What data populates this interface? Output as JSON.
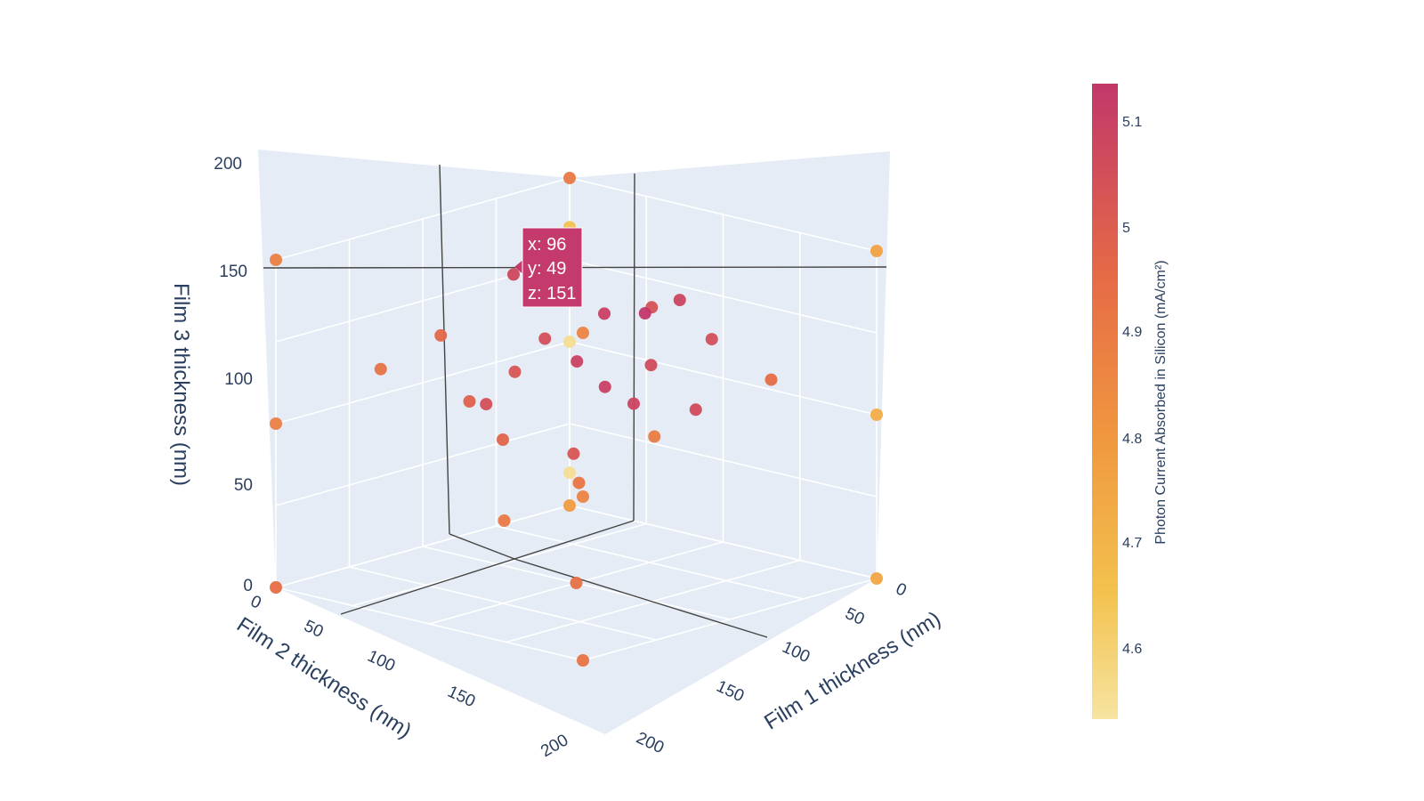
{
  "chart_data": {
    "type": "scatter3d",
    "xlabel": "Film 1 thickness (nm)",
    "ylabel": "Film 2 thickness (nm)",
    "zlabel": "Film 3 thickness (nm)",
    "xticks": [
      "0",
      "50",
      "100",
      "150",
      "200"
    ],
    "yticks": [
      "0",
      "50",
      "100",
      "150",
      "200"
    ],
    "zticks": [
      "0",
      "50",
      "100",
      "150",
      "200"
    ],
    "xlim": [
      0,
      200
    ],
    "ylim": [
      0,
      200
    ],
    "zlim": [
      0,
      200
    ],
    "colorbar": {
      "title": "Photon Current Absorbed in Silicon (mA/cm²)",
      "range": [
        4.53,
        5.13
      ],
      "ticks": [
        "4.6",
        "4.7",
        "4.8",
        "4.9",
        "5",
        "5.1"
      ],
      "colors": [
        "#f3e79b",
        "#fac484",
        "#f8a07e",
        "#eb7f86",
        "#ce6693",
        "#a059a0",
        "#5c53a5"
      ]
    },
    "points": [
      {
        "x": 0,
        "y": 0,
        "z": 0,
        "c": 4.78
      },
      {
        "x": 0,
        "y": 200,
        "z": 0,
        "c": 4.94
      },
      {
        "x": 200,
        "y": 0,
        "z": 0,
        "c": 4.75
      },
      {
        "x": 200,
        "y": 200,
        "z": 0,
        "c": 4.92
      },
      {
        "x": 0,
        "y": 0,
        "z": 200,
        "c": 4.9
      },
      {
        "x": 0,
        "y": 200,
        "z": 200,
        "c": 4.88
      },
      {
        "x": 200,
        "y": 0,
        "z": 200,
        "c": 4.76
      },
      {
        "x": 200,
        "y": 200,
        "z": 200,
        "c": 4.86
      },
      {
        "x": 0,
        "y": 0,
        "z": 100,
        "c": 4.55
      },
      {
        "x": 0,
        "y": 200,
        "z": 100,
        "c": 4.88
      },
      {
        "x": 200,
        "y": 0,
        "z": 100,
        "c": 4.72
      },
      {
        "x": 200,
        "y": 200,
        "z": 100,
        "c": 4.86
      },
      {
        "x": 0,
        "y": 0,
        "z": 20,
        "c": 4.55
      },
      {
        "x": 0,
        "y": 0,
        "z": 170,
        "c": 4.65
      },
      {
        "x": 100,
        "y": 100,
        "z": 0,
        "c": 4.93
      },
      {
        "x": 100,
        "y": 100,
        "z": 200,
        "c": 4.95
      },
      {
        "x": 96,
        "y": 49,
        "z": 151,
        "c": 5.13
      },
      {
        "x": 80,
        "y": 60,
        "z": 150,
        "c": 5.1
      },
      {
        "x": 110,
        "y": 40,
        "z": 160,
        "c": 5.08
      },
      {
        "x": 70,
        "y": 90,
        "z": 140,
        "c": 5.05
      },
      {
        "x": 60,
        "y": 100,
        "z": 120,
        "c": 5.02
      },
      {
        "x": 40,
        "y": 110,
        "z": 100,
        "c": 4.98
      },
      {
        "x": 120,
        "y": 70,
        "z": 130,
        "c": 5.06
      },
      {
        "x": 130,
        "y": 80,
        "z": 170,
        "c": 5.03
      },
      {
        "x": 90,
        "y": 120,
        "z": 180,
        "c": 5.0
      },
      {
        "x": 50,
        "y": 140,
        "z": 150,
        "c": 4.96
      },
      {
        "x": 150,
        "y": 60,
        "z": 150,
        "c": 5.04
      },
      {
        "x": 30,
        "y": 160,
        "z": 130,
        "c": 4.92
      },
      {
        "x": 160,
        "y": 30,
        "z": 120,
        "c": 4.94
      },
      {
        "x": 100,
        "y": 150,
        "z": 100,
        "c": 4.97
      },
      {
        "x": 140,
        "y": 140,
        "z": 80,
        "c": 4.91
      },
      {
        "x": 170,
        "y": 120,
        "z": 110,
        "c": 4.89
      },
      {
        "x": 120,
        "y": 170,
        "z": 60,
        "c": 4.9
      },
      {
        "x": 60,
        "y": 60,
        "z": 60,
        "c": 5.02
      },
      {
        "x": 80,
        "y": 40,
        "z": 90,
        "c": 5.08
      },
      {
        "x": 40,
        "y": 80,
        "z": 170,
        "c": 5.07
      },
      {
        "x": 110,
        "y": 110,
        "z": 140,
        "c": 5.09
      },
      {
        "x": 90,
        "y": 70,
        "z": 110,
        "c": 5.1
      },
      {
        "x": 70,
        "y": 130,
        "z": 110,
        "c": 5.04
      },
      {
        "x": 130,
        "y": 50,
        "z": 100,
        "c": 5.06
      }
    ],
    "tooltip": [
      "x: 96",
      "y: 49",
      "z: 151"
    ]
  }
}
